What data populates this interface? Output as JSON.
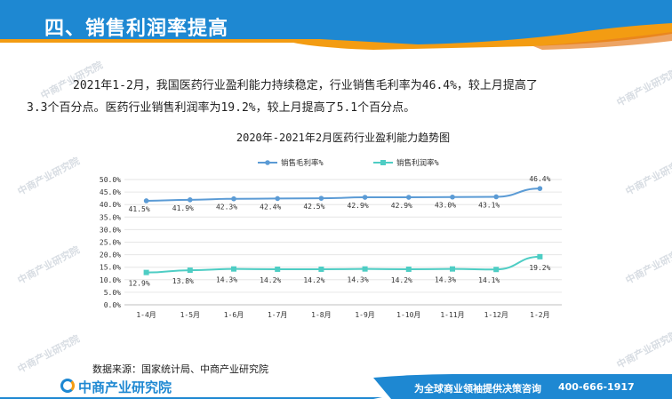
{
  "header": {
    "title": "四、销售利润率提高"
  },
  "paragraph": {
    "line1": "2021年1-2月，我国医药行业盈利能力持续稳定，行业销售毛利率为46.4%，较上月提高了",
    "line2": "3.3个百分点。医药行业销售利润率为19.2%，较上月提高了5.1个百分点。"
  },
  "watermark": {
    "text": "中商产业研究院"
  },
  "chart_data": {
    "type": "line",
    "title": "2020年-2021年2月医药行业盈利能力趋势图",
    "xlabel": "",
    "ylabel": "",
    "ylim": [
      0,
      50
    ],
    "yticks": [
      "0.0%",
      "5.0%",
      "10.0%",
      "15.0%",
      "20.0%",
      "25.0%",
      "30.0%",
      "35.0%",
      "40.0%",
      "45.0%",
      "50.0%"
    ],
    "categories": [
      "1-4月",
      "1-5月",
      "1-6月",
      "1-7月",
      "1-8月",
      "1-9月",
      "1-10月",
      "1-11月",
      "1-12月",
      "1-2月"
    ],
    "legend_position": "top",
    "grid": true,
    "series": [
      {
        "name": "销售毛利率%",
        "color": "#5b9bd5",
        "marker": "circle",
        "values": [
          41.5,
          41.9,
          42.3,
          42.4,
          42.5,
          42.9,
          42.9,
          43.0,
          43.1,
          46.4
        ],
        "labels": [
          "41.5%",
          "41.9%",
          "42.3%",
          "42.4%",
          "42.5%",
          "42.9%",
          "42.9%",
          "43.0%",
          "43.1%",
          "46.4%"
        ]
      },
      {
        "name": "销售利润率%",
        "color": "#4ecdc4",
        "marker": "square",
        "values": [
          12.9,
          13.8,
          14.3,
          14.2,
          14.2,
          14.3,
          14.2,
          14.3,
          14.1,
          19.2
        ],
        "labels": [
          "12.9%",
          "13.8%",
          "14.3%",
          "14.2%",
          "14.2%",
          "14.3%",
          "14.2%",
          "14.3%",
          "14.1%",
          "19.2%"
        ]
      }
    ]
  },
  "source": {
    "text": "数据来源：国家统计局、中商产业研究院"
  },
  "footer": {
    "logo_text": "中商产业研究院",
    "slogan": "为全球商业领袖提供决策咨询",
    "phone": "400-666-1917"
  },
  "colors": {
    "header_blue": "#1e88d2",
    "accent_orange": "#f39c12",
    "footer_blue": "#1e88d2"
  }
}
